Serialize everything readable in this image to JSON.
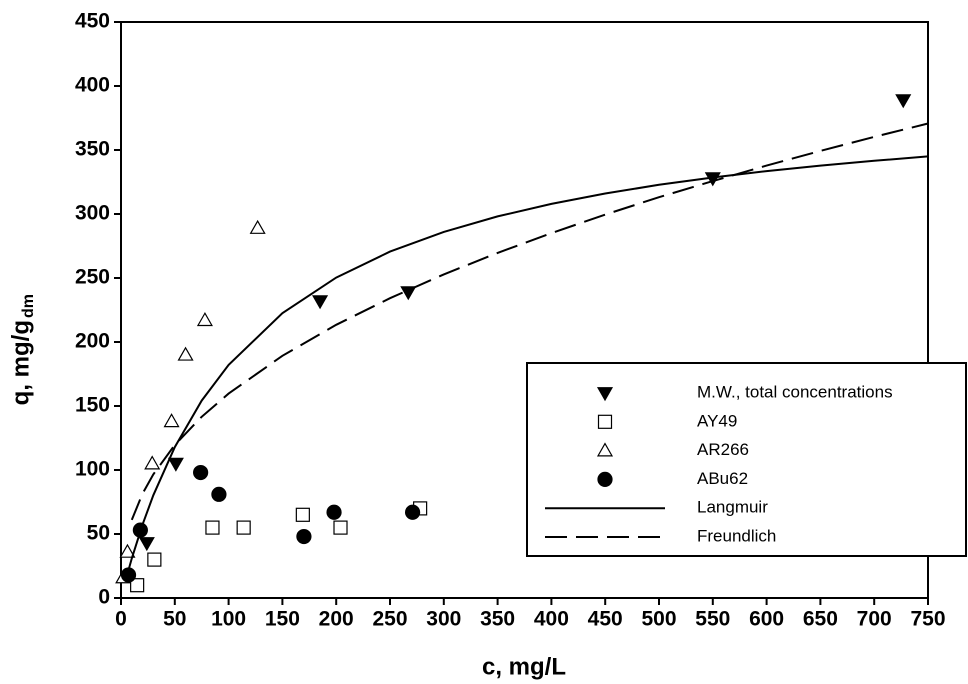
{
  "chart_data": {
    "type": "scatter",
    "xlabel": "c, mg/L",
    "ylabel": "q, mg/g",
    "ylabel_subscript": "dm",
    "xlim": [
      0,
      750
    ],
    "ylim": [
      0,
      450
    ],
    "xticks": [
      0,
      50,
      100,
      150,
      200,
      250,
      300,
      350,
      400,
      450,
      500,
      550,
      600,
      650,
      700,
      750
    ],
    "yticks": [
      0,
      50,
      100,
      150,
      200,
      250,
      300,
      350,
      400,
      450
    ],
    "legend": "lower-right",
    "series": [
      {
        "name": "M.W., total concentrations",
        "marker": "triangle-down",
        "filled": true,
        "color": "#000000",
        "x": [
          24,
          51,
          185,
          267,
          550,
          727
        ],
        "values": [
          43,
          105,
          232,
          239,
          328,
          389
        ]
      },
      {
        "name": "AY49",
        "marker": "square",
        "filled": false,
        "color": "#000000",
        "x": [
          15,
          31,
          85,
          114,
          169,
          204,
          278
        ],
        "values": [
          10,
          30,
          55,
          55,
          65,
          55,
          70
        ]
      },
      {
        "name": "AR266",
        "marker": "triangle-up",
        "filled": false,
        "color": "#000000",
        "x": [
          2,
          6,
          29,
          47,
          60,
          78,
          127
        ],
        "values": [
          16,
          36,
          105,
          138,
          190,
          217,
          289
        ]
      },
      {
        "name": "ABu62",
        "marker": "circle",
        "filled": true,
        "color": "#000000",
        "x": [
          7,
          18,
          74,
          91,
          170,
          198,
          271
        ],
        "values": [
          18,
          53,
          98,
          81,
          48,
          67,
          67
        ]
      },
      {
        "name": "Langmuir",
        "line": "solid",
        "color": "#000000",
        "x": [
          5,
          10,
          20,
          30,
          50,
          75,
          100,
          150,
          200,
          250,
          300,
          350,
          400,
          450,
          500,
          550,
          600,
          650,
          700,
          750
        ],
        "values": [
          16.0,
          30.9,
          57.3,
          80.2,
          117.9,
          154.2,
          182.1,
          222.5,
          250.3,
          270.6,
          286.0,
          298.1,
          307.9,
          316.0,
          322.8,
          328.5,
          333.5,
          337.8,
          341.6,
          345.0
        ]
      },
      {
        "name": "Freundlich",
        "line": "dashed",
        "color": "#000000",
        "x": [
          10,
          20,
          30,
          50,
          75,
          100,
          150,
          200,
          250,
          300,
          350,
          400,
          450,
          500,
          550,
          600,
          650,
          700,
          750
        ],
        "values": [
          61.0,
          81.5,
          96.6,
          119.6,
          141.6,
          159.7,
          189.2,
          213.4,
          234.2,
          252.8,
          269.6,
          285.1,
          299.5,
          313.1,
          325.7,
          337.8,
          349.3,
          360.2,
          370.7
        ]
      }
    ]
  }
}
